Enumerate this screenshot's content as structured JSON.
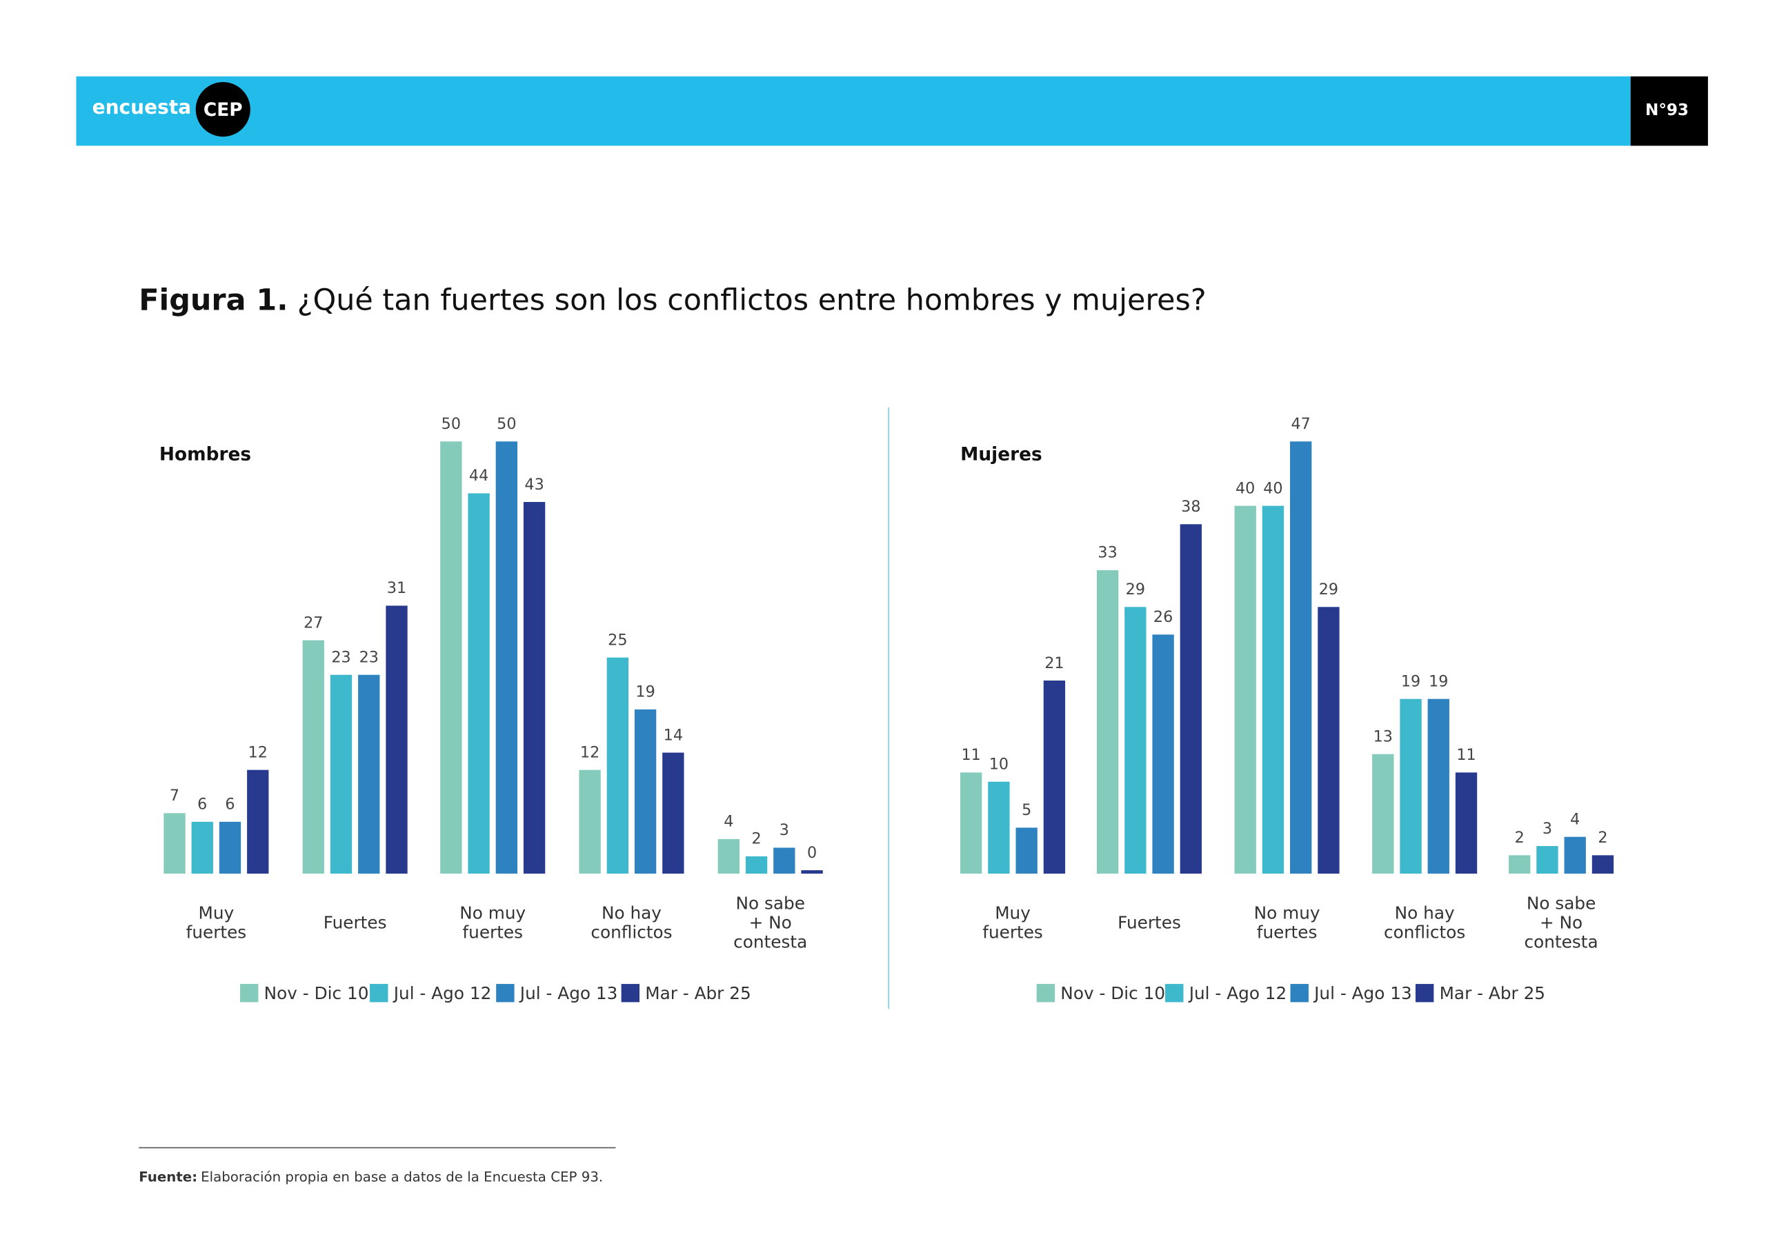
{
  "header": {
    "brand": "encuesta",
    "logo": "CEP",
    "issue": "N°93"
  },
  "figure": {
    "label": "Figura 1.",
    "title": "¿Qué tan fuertes son los conflictos entre hombres y mujeres?"
  },
  "chart_data": [
    {
      "type": "bar",
      "title": "Hombres",
      "categories": [
        "Muy\nfuertes",
        "Fuertes",
        "No muy\nfuertes",
        "No hay\nconflictos",
        "No sabe\n+ No\ncontesta"
      ],
      "series": [
        {
          "name": "Nov - Dic 10",
          "color": "#85cbbb",
          "values": [
            7,
            27,
            50,
            12,
            4
          ]
        },
        {
          "name": "Jul - Ago 12",
          "color": "#3db8cc",
          "values": [
            6,
            23,
            44,
            25,
            2
          ]
        },
        {
          "name": "Jul - Ago 13",
          "color": "#2e82c0",
          "values": [
            6,
            23,
            50,
            19,
            3
          ]
        },
        {
          "name": "Mar - Abr 25",
          "color": "#283a8e",
          "values": [
            12,
            31,
            43,
            14,
            0
          ]
        }
      ]
    },
    {
      "type": "bar",
      "title": "Mujeres",
      "categories": [
        "Muy\nfuertes",
        "Fuertes",
        "No muy\nfuertes",
        "No hay\nconflictos",
        "No sabe\n+ No\ncontesta"
      ],
      "series": [
        {
          "name": "Nov - Dic 10",
          "color": "#85cbbb",
          "values": [
            11,
            33,
            40,
            13,
            2
          ]
        },
        {
          "name": "Jul - Ago 12",
          "color": "#3db8cc",
          "values": [
            10,
            29,
            40,
            19,
            3
          ]
        },
        {
          "name": "Jul - Ago 13",
          "color": "#2e82c0",
          "values": [
            5,
            26,
            47,
            19,
            4
          ]
        },
        {
          "name": "Mar - Abr 25",
          "color": "#283a8e",
          "values": [
            21,
            38,
            29,
            11,
            2
          ]
        }
      ]
    }
  ],
  "source": {
    "label": "Fuente:",
    "text": "Elaboración propia en base a datos de la Encuesta CEP 93."
  }
}
